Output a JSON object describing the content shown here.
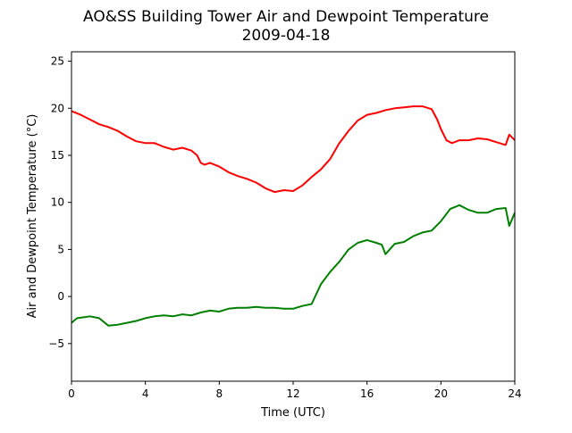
{
  "chart_data": {
    "type": "line",
    "title": "AO&SS Building Tower Air and Dewpoint Temperature",
    "subtitle": "2009-04-18",
    "xlabel": "Time (UTC)",
    "ylabel": "Air and Dewpoint Temperature (°C)",
    "xlim": [
      0,
      24
    ],
    "ylim": [
      -9,
      26
    ],
    "xticks": [
      0,
      4,
      8,
      12,
      16,
      20,
      24
    ],
    "yticks": [
      -5,
      0,
      5,
      10,
      15,
      20,
      25
    ],
    "grid": false,
    "series": [
      {
        "color": "#ff0000",
        "x": [
          0,
          0.5,
          1,
          1.5,
          2,
          2.5,
          3,
          3.5,
          4,
          4.5,
          5,
          5.5,
          6,
          6.5,
          6.8,
          7,
          7.2,
          7.5,
          8,
          8.5,
          9,
          9.5,
          10,
          10.5,
          11,
          11.5,
          12,
          12.5,
          13,
          13.5,
          14,
          14.5,
          15,
          15.5,
          16,
          16.5,
          17,
          17.5,
          18,
          18.5,
          19,
          19.5,
          19.8,
          20,
          20.3,
          20.6,
          21,
          21.5,
          22,
          22.5,
          23,
          23.5,
          23.7,
          24
        ],
        "y": [
          19.7,
          19.3,
          18.8,
          18.3,
          18.0,
          17.6,
          17.0,
          16.5,
          16.3,
          16.3,
          15.9,
          15.6,
          15.8,
          15.5,
          15.0,
          14.2,
          14.0,
          14.2,
          13.8,
          13.2,
          12.8,
          12.5,
          12.1,
          11.5,
          11.1,
          11.3,
          11.2,
          11.8,
          12.7,
          13.5,
          14.6,
          16.3,
          17.6,
          18.7,
          19.3,
          19.5,
          19.8,
          20.0,
          20.1,
          20.2,
          20.2,
          19.9,
          18.8,
          17.8,
          16.6,
          16.3,
          16.6,
          16.6,
          16.8,
          16.7,
          16.4,
          16.1,
          17.2,
          16.6
        ]
      },
      {
        "color": "#008000",
        "x": [
          0,
          0.3,
          0.7,
          1,
          1.5,
          2,
          2.5,
          3,
          3.5,
          4,
          4.5,
          5,
          5.5,
          6,
          6.5,
          7,
          7.5,
          8,
          8.5,
          9,
          9.5,
          10,
          10.5,
          11,
          11.5,
          12,
          12.5,
          13,
          13.5,
          14,
          14.5,
          15,
          15.5,
          16,
          16.5,
          16.8,
          17,
          17.5,
          18,
          18.5,
          19,
          19.5,
          20,
          20.5,
          21,
          21.5,
          22,
          22.5,
          23,
          23.5,
          23.7,
          24
        ],
        "y": [
          -2.8,
          -2.3,
          -2.2,
          -2.1,
          -2.3,
          -3.1,
          -3.0,
          -2.8,
          -2.6,
          -2.3,
          -2.1,
          -2.0,
          -2.1,
          -1.9,
          -2.0,
          -1.7,
          -1.5,
          -1.6,
          -1.3,
          -1.2,
          -1.2,
          -1.1,
          -1.2,
          -1.2,
          -1.3,
          -1.3,
          -1.0,
          -0.8,
          1.3,
          2.6,
          3.7,
          5.0,
          5.7,
          6.0,
          5.7,
          5.5,
          4.5,
          5.6,
          5.8,
          6.4,
          6.8,
          7.0,
          8.0,
          9.3,
          9.7,
          9.2,
          8.9,
          8.9,
          9.3,
          9.4,
          7.5,
          8.9
        ]
      }
    ]
  }
}
